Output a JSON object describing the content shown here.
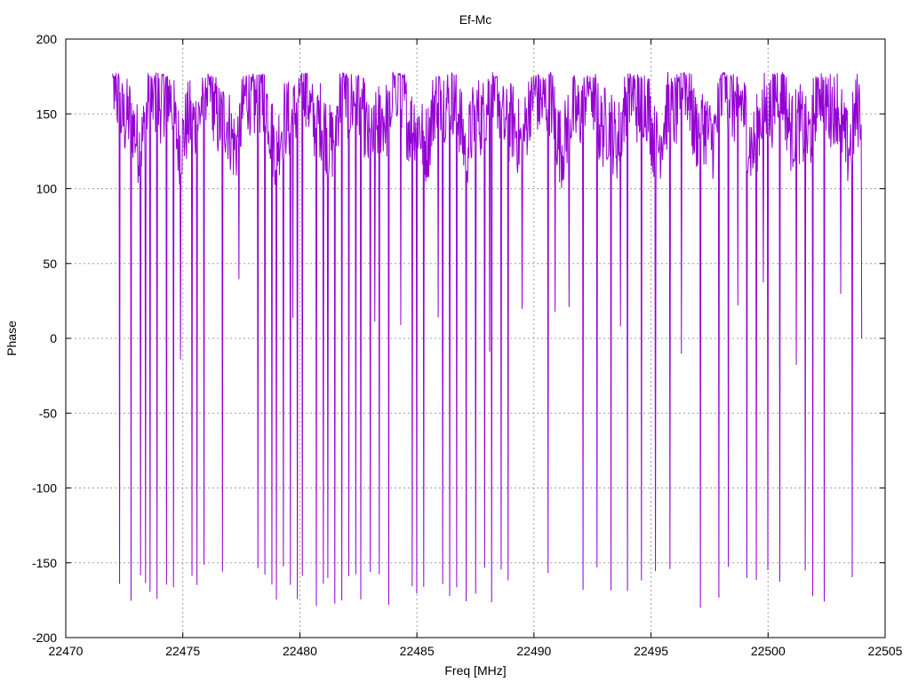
{
  "chart_data": {
    "type": "line",
    "title": "Ef-Mc",
    "xlabel": "Freq [MHz]",
    "ylabel": "Phase",
    "xlim": [
      22470,
      22505
    ],
    "ylim": [
      -200,
      200
    ],
    "xticks": [
      22470,
      22475,
      22480,
      22485,
      22490,
      22495,
      22500,
      22505
    ],
    "yticks": [
      -200,
      -150,
      -100,
      -50,
      0,
      50,
      100,
      150,
      200
    ],
    "grid": true,
    "legend": "none",
    "series": [
      {
        "color": "#9400d3",
        "x_start": 22472.0,
        "x_end": 22504.0,
        "baseline_upper": [
          175,
          158,
          150,
          130,
          110
        ],
        "dips_to_low_extreme": [
          22472.3,
          22472.8,
          22473.2,
          22473.4,
          22473.6,
          22473.9,
          22474.3,
          22474.6,
          22475.4,
          22475.6,
          22475.9,
          22476.7,
          22478.2,
          22478.5,
          22478.8,
          22479.0,
          22479.3,
          22479.6,
          22479.9,
          22480.1,
          22480.7,
          22481.0,
          22481.2,
          22481.5,
          22481.8,
          22482.1,
          22482.4,
          22482.6,
          22483.0,
          22483.4,
          22483.8,
          22484.8,
          22485.0,
          22485.3,
          22486.1,
          22486.4,
          22486.7,
          22487.1,
          22487.5,
          22487.9,
          22488.2,
          22488.6,
          22488.9,
          22490.6,
          22492.1,
          22492.7,
          22493.3,
          22494.0,
          22494.6,
          22495.2,
          22495.8,
          22497.1,
          22497.9,
          22498.3,
          22499.1,
          22499.5,
          22500.0,
          22500.5,
          22501.6,
          22501.9,
          22502.4,
          22503.6
        ],
        "dips_to_mid": [
          22474.9,
          22477.4,
          22479.7,
          22483.2,
          22484.3,
          22485.9,
          22488.1,
          22489.5,
          22490.9,
          22491.5,
          22493.7,
          22496.3,
          22498.7,
          22499.8,
          22501.2,
          22503.1
        ],
        "end_value": 0
      }
    ]
  }
}
